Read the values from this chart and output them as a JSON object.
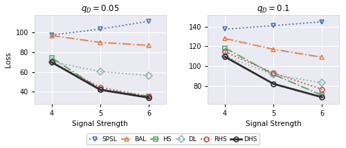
{
  "signal_strengths": [
    4,
    5,
    6
  ],
  "panel1_title": "$q_D = 0.05$",
  "panel2_title": "$q_D = 0.1$",
  "xlabel": "Signal Strength",
  "ylabel": "Loss",
  "series": [
    {
      "name": "SPSL",
      "color": "#4C72B0",
      "linestyle": "dotted",
      "marker": "v",
      "linewidth": 1.4,
      "panel1": [
        97.5,
        103.5,
        111.5
      ],
      "panel2": [
        137.5,
        141.0,
        145.0
      ]
    },
    {
      "name": "BAL",
      "color": "#DD8452",
      "linestyle": "dashdot",
      "marker": "^",
      "linewidth": 1.4,
      "panel1": [
        97.0,
        90.0,
        87.0
      ],
      "panel2": [
        128.0,
        117.0,
        109.0
      ]
    },
    {
      "name": "HS",
      "color": "#55A868",
      "linestyle": "dashdot",
      "marker": "s",
      "linewidth": 1.4,
      "panel1": [
        74.5,
        42.5,
        35.5
      ],
      "panel2": [
        118.5,
        91.5,
        70.5
      ]
    },
    {
      "name": "DL",
      "color": "#8FB4B4",
      "linestyle": "dotted",
      "marker": "D",
      "linewidth": 1.4,
      "panel1": [
        70.5,
        60.5,
        56.5
      ],
      "panel2": [
        110.0,
        91.5,
        83.0
      ]
    },
    {
      "name": "RHS",
      "color": "#C44E52",
      "linestyle": "dotted",
      "marker": "o",
      "linewidth": 1.4,
      "panel1": [
        70.0,
        44.5,
        35.0
      ],
      "panel2": [
        114.5,
        93.0,
        76.5
      ]
    },
    {
      "name": "DHS",
      "color": "#2C2C2C",
      "linestyle": "solid",
      "marker": "o",
      "linewidth": 2.0,
      "panel1": [
        70.0,
        42.0,
        34.0
      ],
      "panel2": [
        109.5,
        82.0,
        68.5
      ]
    }
  ],
  "panel1_ylim": [
    28,
    118
  ],
  "panel2_ylim": [
    62,
    152
  ],
  "panel1_yticks": [
    40,
    60,
    80,
    100
  ],
  "panel2_yticks": [
    80,
    100,
    120,
    140
  ],
  "bg_color": "#FFFFFF",
  "ax_bg_color": "#EAEAF2",
  "grid_color": "#FFFFFF",
  "legend_fontsize": 6.5,
  "title_fontsize": 8.5,
  "axis_label_fontsize": 7.5,
  "tick_fontsize": 7,
  "marker_size": 5
}
